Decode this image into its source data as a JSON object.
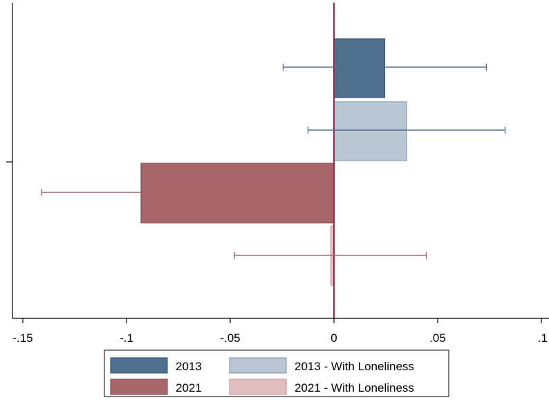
{
  "chart_data": {
    "type": "bar",
    "orientation": "horizontal",
    "title": "",
    "xlabel": "",
    "ylabel": "",
    "xlim": [
      -0.15,
      0.1
    ],
    "x_ticks": [
      -0.15,
      -0.1,
      -0.05,
      0,
      0.05,
      0.1
    ],
    "x_tick_labels": [
      "-.15",
      "-.1",
      "-.05",
      "0",
      ".05",
      ".1"
    ],
    "grid": false,
    "reference_line": 0,
    "legend_position": "bottom",
    "series": [
      {
        "name": "2013",
        "value": 0.0245,
        "ci": [
          -0.0245,
          0.0735
        ],
        "color": "#4f6f8f",
        "ci_color": "#4f6f8f"
      },
      {
        "name": "2013 - With Loneliness",
        "value": 0.035,
        "ci": [
          -0.0125,
          0.0825
        ],
        "color": "#b9c6d4",
        "ci_color": "#4f6f8f"
      },
      {
        "name": "2021",
        "value": -0.093,
        "ci": [
          -0.141,
          -0.045
        ],
        "color": "#a8666b",
        "ci_color": "#a8666b"
      },
      {
        "name": "2021 - With Loneliness",
        "value": -0.0015,
        "ci": [
          -0.048,
          0.0445
        ],
        "color": "#e2bec1",
        "ci_color": "#a8666b"
      }
    ],
    "legend_order": [
      "2013",
      "2013 - With Loneliness",
      "2021",
      "2021 - With Loneliness"
    ]
  },
  "colors": {
    "zero_line": "#b01c48",
    "axis": "#000000",
    "bar_outline_2013": "#3e5a76",
    "bar_outline_2021": "#8c4a50"
  }
}
